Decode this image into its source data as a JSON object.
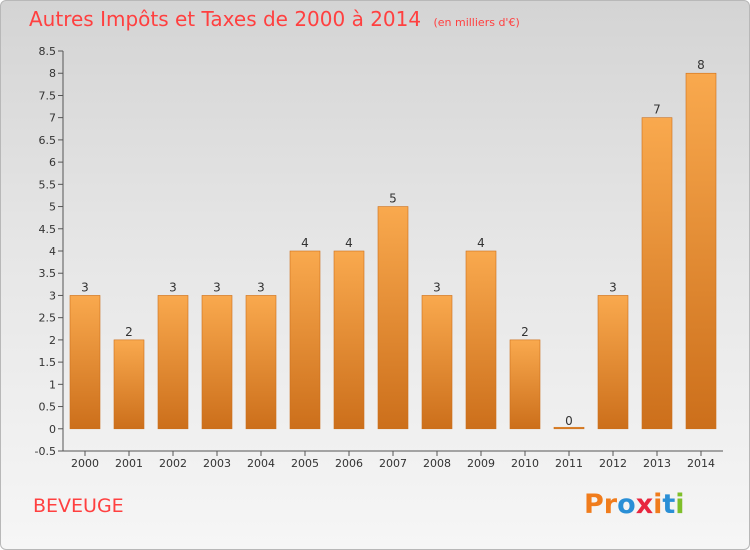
{
  "header": {
    "title": "Autres Impôts et Taxes de 2000 à 2014",
    "unit": "(en milliers d'€)"
  },
  "footer": {
    "place": "BEVEUGE",
    "logo_letters": [
      "P",
      "r",
      "o",
      "x",
      "i",
      "t",
      "i"
    ],
    "logo_colors": [
      "#f07c1c",
      "#f07c1c",
      "#2a8fd6",
      "#e8263e",
      "#f07c1c",
      "#2a8fd6",
      "#7fbf2a"
    ]
  },
  "colors": {
    "bar_top": "#f9a94e",
    "bar_bottom": "#cc6f1b",
    "title": "#ff4040"
  },
  "chart_data": {
    "type": "bar",
    "title": "Autres Impôts et Taxes de 2000 à 2014",
    "categories": [
      "2000",
      "2001",
      "2002",
      "2003",
      "2004",
      "2005",
      "2006",
      "2007",
      "2008",
      "2009",
      "2010",
      "2011",
      "2012",
      "2013",
      "2014"
    ],
    "values": [
      3,
      2,
      3,
      3,
      3,
      4,
      4,
      5,
      3,
      4,
      2,
      0,
      3,
      7,
      8
    ],
    "value_labels": [
      "3",
      "2",
      "3",
      "3",
      "3",
      "4",
      "4",
      "5",
      "3",
      "4",
      "2",
      "0",
      "3",
      "7",
      "8"
    ],
    "yticks": [
      "-0.5",
      "0",
      "0.5",
      "1",
      "1.5",
      "2",
      "2.5",
      "3",
      "3.5",
      "4",
      "4.5",
      "5",
      "5.5",
      "6",
      "6.5",
      "7",
      "7.5",
      "8",
      "8.5"
    ],
    "ylim": [
      -0.5,
      8.5
    ],
    "grid": false,
    "legend": "none"
  }
}
